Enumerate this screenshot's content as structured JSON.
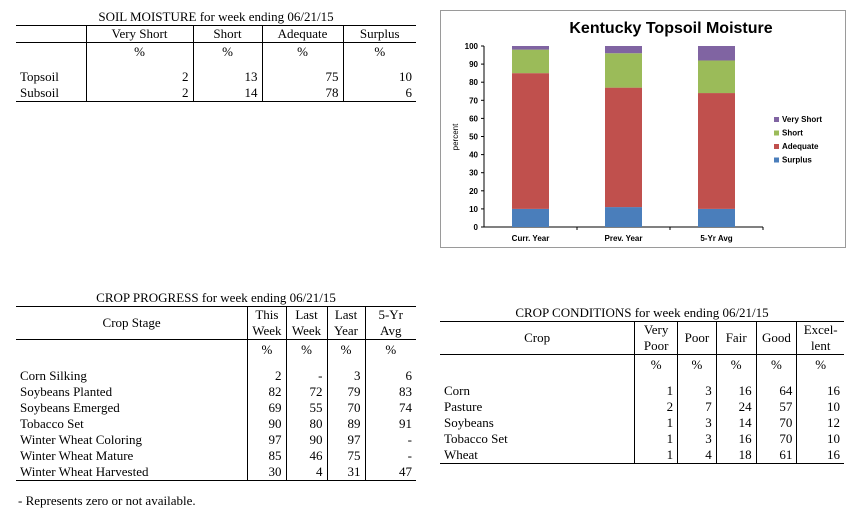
{
  "soil": {
    "title": "SOIL MOISTURE for week ending 06/21/15",
    "columns": [
      "Very Short",
      "Short",
      "Adequate",
      "Surplus"
    ],
    "unit": "%",
    "rows": [
      {
        "label": "Topsoil",
        "values": [
          "2",
          "13",
          "75",
          "10"
        ]
      },
      {
        "label": "Subsoil",
        "values": [
          "2",
          "14",
          "78",
          "6"
        ]
      }
    ]
  },
  "progress": {
    "title": "CROP PROGRESS for week ending 06/21/15",
    "stage_header": "Crop Stage",
    "columns": [
      {
        "l1": "This",
        "l2": "Week"
      },
      {
        "l1": "Last",
        "l2": "Week"
      },
      {
        "l1": "Last",
        "l2": "Year"
      },
      {
        "l1": "5-Yr",
        "l2": "Avg"
      }
    ],
    "unit": "%",
    "rows": [
      {
        "label": "Corn Silking",
        "values": [
          "2",
          "-",
          "3",
          "6"
        ]
      },
      {
        "label": "Soybeans Planted",
        "values": [
          "82",
          "72",
          "79",
          "83"
        ]
      },
      {
        "label": "Soybeans Emerged",
        "values": [
          "69",
          "55",
          "70",
          "74"
        ]
      },
      {
        "label": "Tobacco Set",
        "values": [
          "90",
          "80",
          "89",
          "91"
        ]
      },
      {
        "label": "Winter Wheat Coloring",
        "values": [
          "97",
          "90",
          "97",
          "-"
        ]
      },
      {
        "label": "Winter Wheat Mature",
        "values": [
          "85",
          "46",
          "75",
          "-"
        ]
      },
      {
        "label": "Winter Wheat Harvested",
        "values": [
          "30",
          "4",
          "31",
          "47"
        ]
      }
    ],
    "footnote": "- Represents zero or not available."
  },
  "conditions": {
    "title": "CROP CONDITIONS for week ending 06/21/15",
    "crop_header": "Crop",
    "columns": [
      {
        "l1": "Very",
        "l2": "Poor"
      },
      {
        "l1": "Poor",
        "l2": ""
      },
      {
        "l1": "Fair",
        "l2": ""
      },
      {
        "l1": "Good",
        "l2": ""
      },
      {
        "l1": "Excel-",
        "l2": "lent"
      }
    ],
    "unit": "%",
    "rows": [
      {
        "label": "Corn",
        "values": [
          "1",
          "3",
          "16",
          "64",
          "16"
        ]
      },
      {
        "label": "Pasture",
        "values": [
          "2",
          "7",
          "24",
          "57",
          "10"
        ]
      },
      {
        "label": "Soybeans",
        "values": [
          "1",
          "3",
          "14",
          "70",
          "12"
        ]
      },
      {
        "label": "Tobacco Set",
        "values": [
          "1",
          "3",
          "16",
          "70",
          "10"
        ]
      },
      {
        "label": "Wheat",
        "values": [
          "1",
          "4",
          "18",
          "61",
          "16"
        ]
      }
    ]
  },
  "chart_data": {
    "type": "bar",
    "stacked": true,
    "title": "Kentucky Topsoil Moisture",
    "ylabel": "percent",
    "xlabel": "",
    "ylim": [
      0,
      100
    ],
    "yticks": [
      0,
      10,
      20,
      30,
      40,
      50,
      60,
      70,
      80,
      90,
      100
    ],
    "categories": [
      "Curr. Year",
      "Prev. Year",
      "5-Yr Avg"
    ],
    "series": [
      {
        "name": "Surplus",
        "color": "#4a7ebb",
        "values": [
          10,
          11,
          10
        ]
      },
      {
        "name": "Adequate",
        "color": "#c0504d",
        "values": [
          75,
          66,
          64
        ]
      },
      {
        "name": "Short",
        "color": "#9bbb59",
        "values": [
          13,
          19,
          18
        ]
      },
      {
        "name": "Very Short",
        "color": "#8064a2",
        "values": [
          2,
          4,
          8
        ]
      }
    ],
    "legend_order": [
      "Very Short",
      "Short",
      "Adequate",
      "Surplus"
    ],
    "legend_position": "right",
    "grid": false
  }
}
